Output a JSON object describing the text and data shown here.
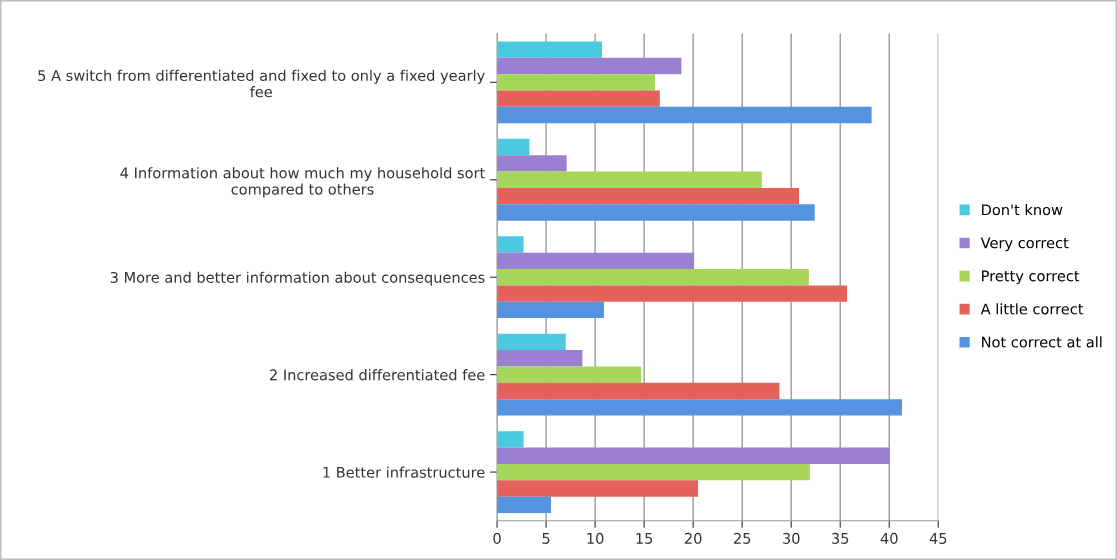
{
  "chart_data": {
    "type": "bar",
    "orientation": "horizontal",
    "categories": [
      "5 A switch from differentiated and fixed to only a fixed yearly\nfee",
      "4 Information about how much my household sort\ncompared to others",
      "3 More and better information about consequences",
      "2 Increased differentiated fee",
      "1 Better infrastructure"
    ],
    "series": [
      {
        "name": "Don't know",
        "color": "#4bc9e0",
        "values": [
          10.7,
          3.3,
          2.7,
          7.0,
          2.7
        ]
      },
      {
        "name": "Very correct",
        "color": "#9b7fd0",
        "values": [
          18.8,
          7.1,
          20.1,
          8.7,
          40.0
        ]
      },
      {
        "name": "Pretty correct",
        "color": "#a5d65a",
        "values": [
          16.1,
          27.0,
          31.8,
          14.7,
          31.9
        ]
      },
      {
        "name": "A little correct",
        "color": "#e5625c",
        "values": [
          16.6,
          30.8,
          35.7,
          28.8,
          20.5
        ]
      },
      {
        "name": "Not correct at all",
        "color": "#5592e0",
        "values": [
          38.2,
          32.4,
          10.9,
          41.3,
          5.5
        ]
      }
    ],
    "xlim": [
      0,
      45
    ],
    "xticks": [
      0,
      5,
      10,
      15,
      20,
      25,
      30,
      35,
      40,
      45
    ],
    "grid": "x",
    "legend": "right"
  }
}
